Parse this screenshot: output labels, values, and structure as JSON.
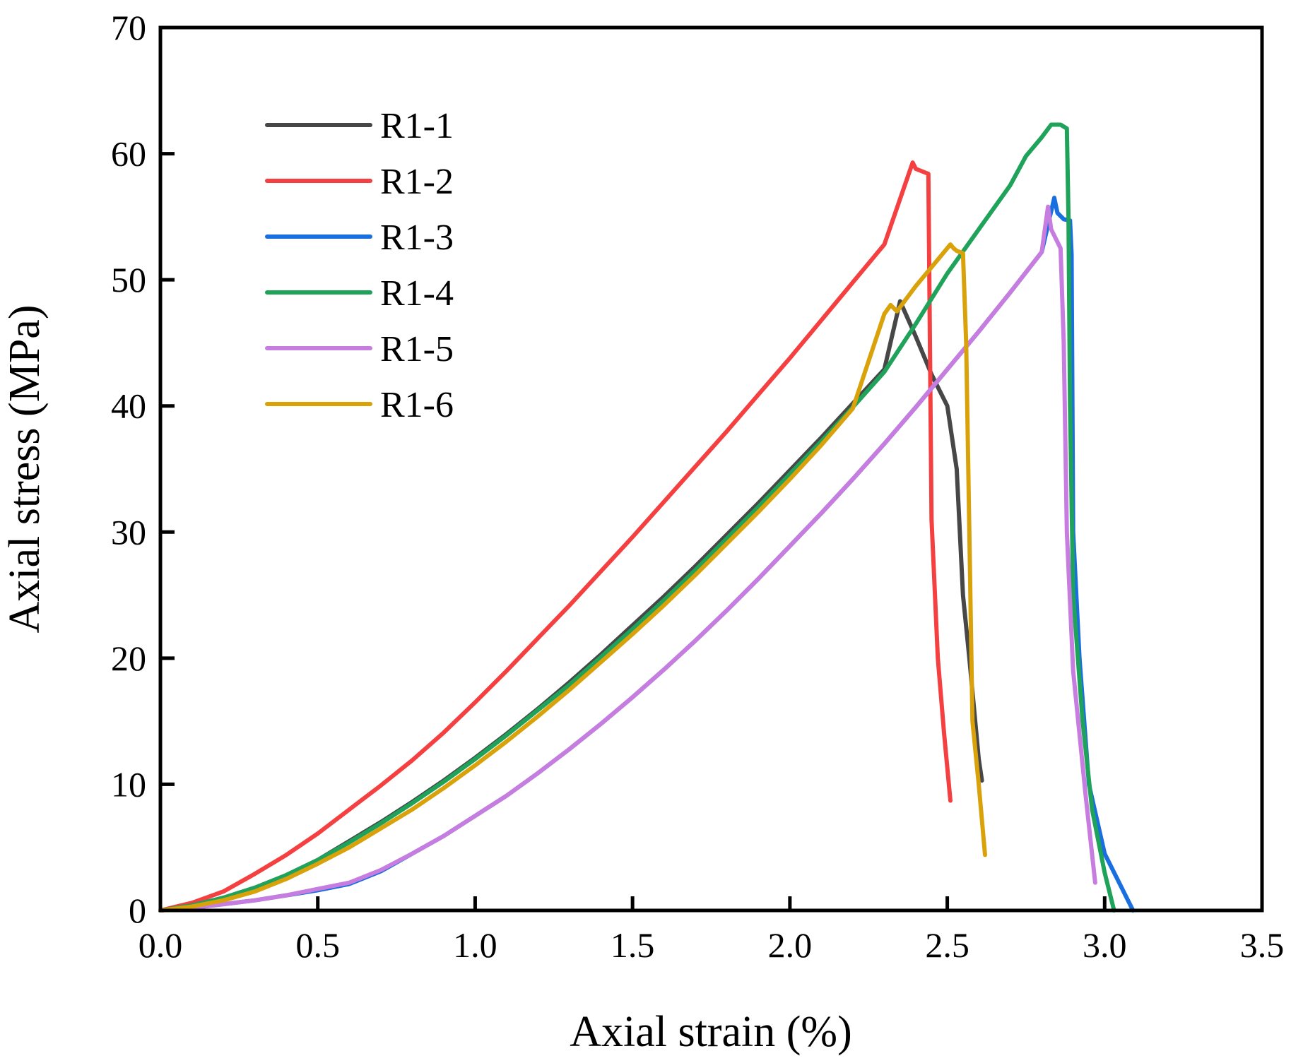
{
  "chart_data": {
    "type": "line",
    "title": "",
    "xlabel": "Axial strain (%)",
    "ylabel": "Axial stress (MPa)",
    "xlim": [
      0,
      3.5
    ],
    "ylim": [
      0,
      70
    ],
    "xticks": [
      "0.0",
      "0.5",
      "1.0",
      "1.5",
      "2.0",
      "2.5",
      "3.0",
      "3.5"
    ],
    "yticks": [
      "0",
      "10",
      "20",
      "30",
      "40",
      "50",
      "60",
      "70"
    ],
    "grid": false,
    "legend_position": "top-left",
    "series": [
      {
        "name": "R1-1",
        "color": "#474747",
        "x": [
          0,
          0.1,
          0.2,
          0.3,
          0.4,
          0.5,
          0.6,
          0.7,
          0.8,
          0.9,
          1.0,
          1.1,
          1.2,
          1.3,
          1.4,
          1.5,
          1.6,
          1.7,
          1.8,
          1.9,
          2.0,
          2.1,
          2.2,
          2.3,
          2.35,
          2.4,
          2.45,
          2.5,
          2.53,
          2.55,
          2.57,
          2.6,
          2.61
        ],
        "y": [
          0,
          0.4,
          1.0,
          1.8,
          2.8,
          4.0,
          5.5,
          7.0,
          8.6,
          10.3,
          12.1,
          14.0,
          16.0,
          18.1,
          20.3,
          22.6,
          24.9,
          27.3,
          29.8,
          32.3,
          34.9,
          37.5,
          40.2,
          42.9,
          48.3,
          45.5,
          42.5,
          40.0,
          35.0,
          25.0,
          20.0,
          12.0,
          10.3
        ]
      },
      {
        "name": "R1-2",
        "color": "#f44040",
        "x": [
          0,
          0.1,
          0.2,
          0.3,
          0.4,
          0.5,
          0.6,
          0.7,
          0.8,
          0.9,
          1.0,
          1.1,
          1.2,
          1.3,
          1.4,
          1.5,
          1.6,
          1.7,
          1.8,
          1.9,
          2.0,
          2.1,
          2.2,
          2.3,
          2.39,
          2.4,
          2.44,
          2.443,
          2.45,
          2.47,
          2.49,
          2.51
        ],
        "y": [
          0,
          0.6,
          1.5,
          2.9,
          4.4,
          6.1,
          8.0,
          9.9,
          11.9,
          14.1,
          16.5,
          19.0,
          21.6,
          24.2,
          26.9,
          29.6,
          32.4,
          35.2,
          38.0,
          40.9,
          43.8,
          46.8,
          49.8,
          52.8,
          59.3,
          58.8,
          58.4,
          50.0,
          31.0,
          20.0,
          14.0,
          8.7
        ]
      },
      {
        "name": "R1-3",
        "color": "#1a6fe0",
        "x": [
          0,
          0.1,
          0.2,
          0.3,
          0.4,
          0.5,
          0.6,
          0.7,
          0.8,
          0.9,
          1.0,
          1.1,
          1.2,
          1.3,
          1.4,
          1.5,
          1.6,
          1.7,
          1.8,
          1.9,
          2.0,
          2.1,
          2.2,
          2.3,
          2.4,
          2.5,
          2.6,
          2.7,
          2.8,
          2.84,
          2.85,
          2.87,
          2.89,
          2.895,
          2.9,
          2.92,
          2.95,
          3.0,
          3.05,
          3.09
        ],
        "y": [
          0,
          0.2,
          0.5,
          0.8,
          1.2,
          1.6,
          2.1,
          3.1,
          4.5,
          5.9,
          7.5,
          9.1,
          10.9,
          12.8,
          14.8,
          16.9,
          19.1,
          21.4,
          23.8,
          26.3,
          28.9,
          31.5,
          34.2,
          37.0,
          39.9,
          42.9,
          45.9,
          49.0,
          52.2,
          56.5,
          55.3,
          54.8,
          54.7,
          52.0,
          30.0,
          20.0,
          10.0,
          4.5,
          2.0,
          0
        ]
      },
      {
        "name": "R1-4",
        "color": "#1fa35a",
        "x": [
          0,
          0.1,
          0.2,
          0.3,
          0.4,
          0.5,
          0.6,
          0.7,
          0.8,
          0.9,
          1.0,
          1.1,
          1.2,
          1.3,
          1.4,
          1.5,
          1.6,
          1.7,
          1.8,
          1.9,
          2.0,
          2.1,
          2.2,
          2.3,
          2.4,
          2.5,
          2.6,
          2.7,
          2.75,
          2.8,
          2.83,
          2.86,
          2.88,
          2.885,
          2.89,
          2.9,
          2.93,
          2.96,
          3.0,
          3.03
        ],
        "y": [
          0,
          0.4,
          1.0,
          1.8,
          2.8,
          4.0,
          5.4,
          6.9,
          8.5,
          10.2,
          12.0,
          13.9,
          15.9,
          17.9,
          20.1,
          22.3,
          24.6,
          27.0,
          29.5,
          32.0,
          34.6,
          37.2,
          39.9,
          42.7,
          46.5,
          50.5,
          54.0,
          57.5,
          59.8,
          61.3,
          62.3,
          62.3,
          62.0,
          55.0,
          40.0,
          25.0,
          15.0,
          8.0,
          3.0,
          0
        ]
      },
      {
        "name": "R1-5",
        "color": "#c77de0",
        "x": [
          0,
          0.1,
          0.2,
          0.3,
          0.4,
          0.5,
          0.6,
          0.7,
          0.8,
          0.9,
          1.0,
          1.1,
          1.2,
          1.3,
          1.4,
          1.5,
          1.6,
          1.7,
          1.8,
          1.9,
          2.0,
          2.1,
          2.2,
          2.3,
          2.4,
          2.5,
          2.6,
          2.7,
          2.8,
          2.82,
          2.83,
          2.86,
          2.87,
          2.88,
          2.9,
          2.94,
          2.97
        ],
        "y": [
          0,
          0.2,
          0.5,
          0.8,
          1.2,
          1.7,
          2.2,
          3.2,
          4.5,
          5.9,
          7.5,
          9.1,
          10.9,
          12.8,
          14.8,
          16.9,
          19.1,
          21.4,
          23.8,
          26.3,
          28.9,
          31.5,
          34.2,
          37.0,
          39.9,
          42.9,
          45.9,
          49.0,
          52.2,
          55.8,
          54.0,
          52.5,
          45.0,
          30.0,
          19.0,
          9.0,
          2.2
        ]
      },
      {
        "name": "R1-6",
        "color": "#d9a20a",
        "x": [
          0,
          0.1,
          0.2,
          0.3,
          0.4,
          0.5,
          0.6,
          0.7,
          0.8,
          0.9,
          1.0,
          1.1,
          1.2,
          1.3,
          1.4,
          1.5,
          1.6,
          1.7,
          1.8,
          1.9,
          2.0,
          2.1,
          2.2,
          2.3,
          2.32,
          2.34,
          2.4,
          2.45,
          2.51,
          2.52,
          2.53,
          2.55,
          2.56,
          2.57,
          2.58,
          2.6,
          2.62
        ],
        "y": [
          0,
          0.3,
          0.8,
          1.5,
          2.5,
          3.7,
          5.0,
          6.5,
          8.0,
          9.7,
          11.5,
          13.4,
          15.4,
          17.5,
          19.7,
          21.9,
          24.2,
          26.6,
          29.1,
          31.6,
          34.2,
          36.9,
          39.8,
          47.3,
          48.0,
          47.5,
          49.5,
          51.0,
          52.8,
          52.5,
          52.3,
          52.1,
          45.0,
          30.0,
          15.0,
          10.0,
          4.4
        ]
      }
    ]
  }
}
